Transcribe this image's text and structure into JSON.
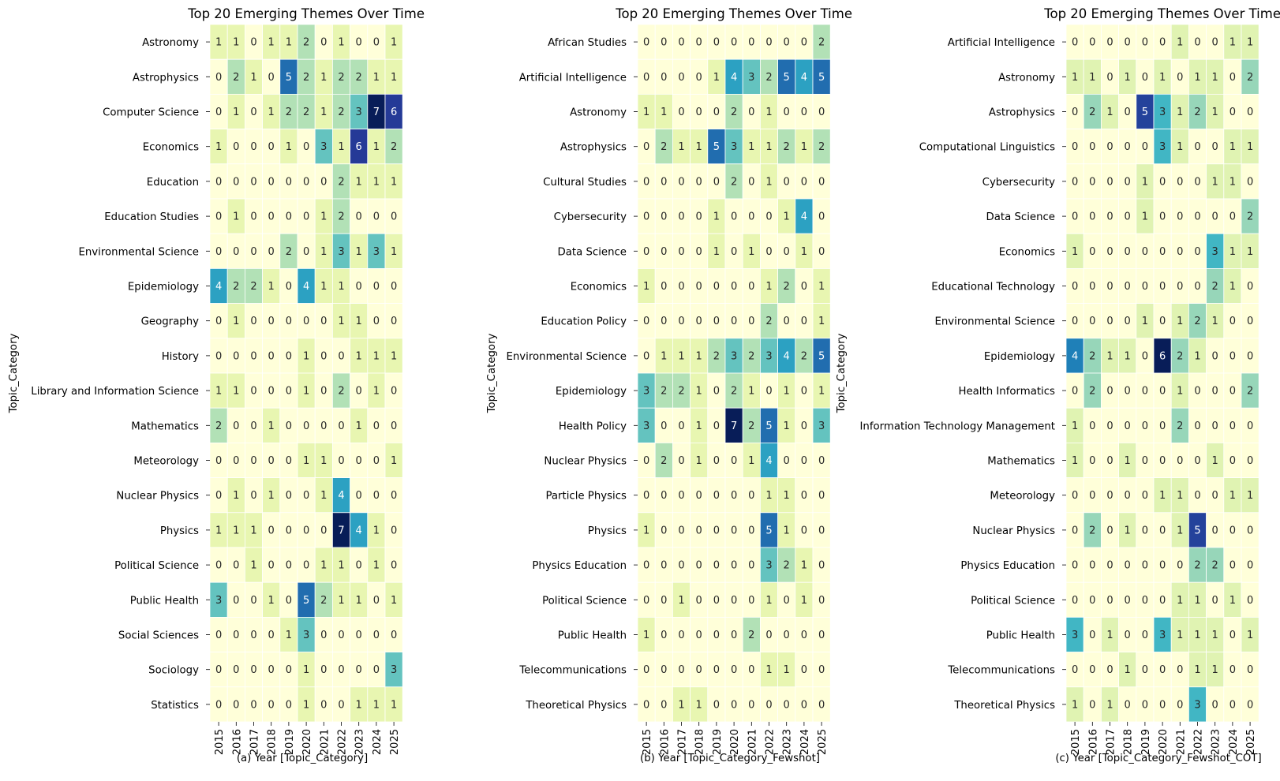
{
  "chart_data": [
    {
      "type": "heatmap",
      "title": "Top 20 Emerging Themes Over Time",
      "xlabel": "(a) Year [Topic_Category]",
      "ylabel": "Topic_Category",
      "x": [
        "2015",
        "2016",
        "2017",
        "2018",
        "2019",
        "2020",
        "2021",
        "2022",
        "2023",
        "2024",
        "2025"
      ],
      "y": [
        "Astronomy",
        "Astrophysics",
        "Computer Science",
        "Economics",
        "Education",
        "Education Studies",
        "Environmental Science",
        "Epidemiology",
        "Geography",
        "History",
        "Library and Information Science",
        "Mathematics",
        "Meteorology",
        "Nuclear Physics",
        "Physics",
        "Political Science",
        "Public Health",
        "Social Sciences",
        "Sociology",
        "Statistics"
      ],
      "values": [
        [
          1,
          1,
          0,
          1,
          1,
          2,
          0,
          1,
          0,
          0,
          1
        ],
        [
          0,
          2,
          1,
          0,
          5,
          2,
          1,
          2,
          2,
          1,
          1
        ],
        [
          0,
          1,
          0,
          1,
          2,
          2,
          1,
          2,
          3,
          7,
          6
        ],
        [
          1,
          0,
          0,
          0,
          1,
          0,
          3,
          1,
          6,
          1,
          2
        ],
        [
          0,
          0,
          0,
          0,
          0,
          0,
          0,
          2,
          1,
          1,
          1
        ],
        [
          0,
          1,
          0,
          0,
          0,
          0,
          1,
          2,
          0,
          0,
          0
        ],
        [
          0,
          0,
          0,
          0,
          2,
          0,
          1,
          3,
          1,
          3,
          1
        ],
        [
          4,
          2,
          2,
          1,
          0,
          4,
          1,
          1,
          0,
          0,
          0
        ],
        [
          0,
          1,
          0,
          0,
          0,
          0,
          0,
          1,
          1,
          0,
          0
        ],
        [
          0,
          0,
          0,
          0,
          0,
          1,
          0,
          0,
          1,
          1,
          1
        ],
        [
          1,
          1,
          0,
          0,
          0,
          1,
          0,
          2,
          0,
          1,
          0
        ],
        [
          2,
          0,
          0,
          1,
          0,
          0,
          0,
          0,
          1,
          0,
          0
        ],
        [
          0,
          0,
          0,
          0,
          0,
          1,
          1,
          0,
          0,
          0,
          1
        ],
        [
          0,
          1,
          0,
          1,
          0,
          0,
          1,
          4,
          0,
          0,
          0
        ],
        [
          1,
          1,
          1,
          0,
          0,
          0,
          0,
          7,
          4,
          1,
          0
        ],
        [
          0,
          0,
          1,
          0,
          0,
          0,
          1,
          1,
          0,
          1,
          0
        ],
        [
          3,
          0,
          0,
          1,
          0,
          5,
          2,
          1,
          1,
          0,
          1
        ],
        [
          0,
          0,
          0,
          0,
          1,
          3,
          0,
          0,
          0,
          0,
          0
        ],
        [
          0,
          0,
          0,
          0,
          0,
          1,
          0,
          0,
          0,
          0,
          3
        ],
        [
          0,
          0,
          0,
          0,
          0,
          1,
          0,
          0,
          1,
          1,
          1
        ]
      ],
      "vmax": 7,
      "colormap": "YlGnBu"
    },
    {
      "type": "heatmap",
      "title": "Top 20 Emerging Themes Over Time",
      "xlabel": "(b) Year [Topic_Category_Fewshot]",
      "ylabel": "Topic_Category",
      "x": [
        "2015",
        "2016",
        "2017",
        "2018",
        "2019",
        "2020",
        "2021",
        "2022",
        "2023",
        "2024",
        "2025"
      ],
      "y": [
        "African Studies",
        "Artificial Intelligence",
        "Astronomy",
        "Astrophysics",
        "Cultural Studies",
        "Cybersecurity",
        "Data Science",
        "Economics",
        "Education Policy",
        "Environmental Science",
        "Epidemiology",
        "Health Policy",
        "Nuclear Physics",
        "Particle Physics",
        "Physics",
        "Physics Education",
        "Political Science",
        "Public Health",
        "Telecommunications",
        "Theoretical Physics"
      ],
      "values": [
        [
          0,
          0,
          0,
          0,
          0,
          0,
          0,
          0,
          0,
          0,
          2
        ],
        [
          0,
          0,
          0,
          0,
          1,
          4,
          3,
          2,
          5,
          4,
          5
        ],
        [
          1,
          1,
          0,
          0,
          0,
          2,
          0,
          1,
          0,
          0,
          0
        ],
        [
          0,
          2,
          1,
          1,
          5,
          3,
          1,
          1,
          2,
          1,
          2
        ],
        [
          0,
          0,
          0,
          0,
          0,
          2,
          0,
          1,
          0,
          0,
          0
        ],
        [
          0,
          0,
          0,
          0,
          1,
          0,
          0,
          0,
          1,
          4,
          0
        ],
        [
          0,
          0,
          0,
          0,
          1,
          0,
          1,
          0,
          0,
          1,
          0
        ],
        [
          1,
          0,
          0,
          0,
          0,
          0,
          0,
          1,
          2,
          0,
          1
        ],
        [
          0,
          0,
          0,
          0,
          0,
          0,
          0,
          2,
          0,
          0,
          1
        ],
        [
          0,
          1,
          1,
          1,
          2,
          3,
          2,
          3,
          4,
          2,
          5
        ],
        [
          3,
          2,
          2,
          1,
          0,
          2,
          1,
          0,
          1,
          0,
          1
        ],
        [
          3,
          0,
          0,
          1,
          0,
          7,
          2,
          5,
          1,
          0,
          3
        ],
        [
          0,
          2,
          0,
          1,
          0,
          0,
          1,
          4,
          0,
          0,
          0
        ],
        [
          0,
          0,
          0,
          0,
          0,
          0,
          0,
          1,
          1,
          0,
          0
        ],
        [
          1,
          0,
          0,
          0,
          0,
          0,
          0,
          5,
          1,
          0,
          0
        ],
        [
          0,
          0,
          0,
          0,
          0,
          0,
          0,
          3,
          2,
          1,
          0
        ],
        [
          0,
          0,
          1,
          0,
          0,
          0,
          0,
          1,
          0,
          1,
          0
        ],
        [
          1,
          0,
          0,
          0,
          0,
          0,
          2,
          0,
          0,
          0,
          0
        ],
        [
          0,
          0,
          0,
          0,
          0,
          0,
          0,
          1,
          1,
          0,
          0
        ],
        [
          0,
          0,
          1,
          1,
          0,
          0,
          0,
          0,
          0,
          0,
          0
        ]
      ],
      "vmax": 7,
      "colormap": "YlGnBu"
    },
    {
      "type": "heatmap",
      "title": "Top 20 Emerging Themes Over Time",
      "xlabel": "(c) Year [Topic_Category_Fewshot_COT]",
      "ylabel": "Topic_Category",
      "x": [
        "2015",
        "2016",
        "2017",
        "2018",
        "2019",
        "2020",
        "2021",
        "2022",
        "2023",
        "2024",
        "2025"
      ],
      "y": [
        "Artificial Intelligence",
        "Astronomy",
        "Astrophysics",
        "Computational Linguistics",
        "Cybersecurity",
        "Data Science",
        "Economics",
        "Educational Technology",
        "Environmental Science",
        "Epidemiology",
        "Health Informatics",
        "Information Technology Management",
        "Mathematics",
        "Meteorology",
        "Nuclear Physics",
        "Physics Education",
        "Political Science",
        "Public Health",
        "Telecommunications",
        "Theoretical Physics"
      ],
      "values": [
        [
          0,
          0,
          0,
          0,
          0,
          0,
          1,
          0,
          0,
          1,
          1
        ],
        [
          1,
          1,
          0,
          1,
          0,
          1,
          0,
          1,
          1,
          0,
          2
        ],
        [
          0,
          2,
          1,
          0,
          5,
          3,
          1,
          2,
          1,
          0,
          0
        ],
        [
          0,
          0,
          0,
          0,
          0,
          3,
          1,
          0,
          0,
          1,
          1
        ],
        [
          0,
          0,
          0,
          0,
          1,
          0,
          0,
          0,
          1,
          1,
          0
        ],
        [
          0,
          0,
          0,
          0,
          1,
          0,
          0,
          0,
          0,
          0,
          2
        ],
        [
          1,
          0,
          0,
          0,
          0,
          0,
          0,
          0,
          3,
          1,
          1
        ],
        [
          0,
          0,
          0,
          0,
          0,
          0,
          0,
          0,
          2,
          1,
          0
        ],
        [
          0,
          0,
          0,
          0,
          1,
          0,
          1,
          2,
          1,
          0,
          0
        ],
        [
          4,
          2,
          1,
          1,
          0,
          6,
          2,
          1,
          0,
          0,
          0
        ],
        [
          0,
          2,
          0,
          0,
          0,
          0,
          1,
          0,
          0,
          0,
          2
        ],
        [
          1,
          0,
          0,
          0,
          0,
          0,
          2,
          0,
          0,
          0,
          0
        ],
        [
          1,
          0,
          0,
          1,
          0,
          0,
          0,
          0,
          1,
          0,
          0
        ],
        [
          0,
          0,
          0,
          0,
          0,
          1,
          1,
          0,
          0,
          1,
          1
        ],
        [
          0,
          2,
          0,
          1,
          0,
          0,
          1,
          5,
          0,
          0,
          0
        ],
        [
          0,
          0,
          0,
          0,
          0,
          0,
          0,
          2,
          2,
          0,
          0
        ],
        [
          0,
          0,
          0,
          0,
          0,
          0,
          1,
          1,
          0,
          1,
          0
        ],
        [
          3,
          0,
          1,
          0,
          0,
          3,
          1,
          1,
          1,
          0,
          1
        ],
        [
          0,
          0,
          0,
          1,
          0,
          0,
          0,
          1,
          1,
          0,
          0
        ],
        [
          1,
          0,
          1,
          0,
          0,
          0,
          0,
          3,
          0,
          0,
          0
        ]
      ],
      "vmax": 6,
      "colormap": "YlGnBu"
    }
  ]
}
